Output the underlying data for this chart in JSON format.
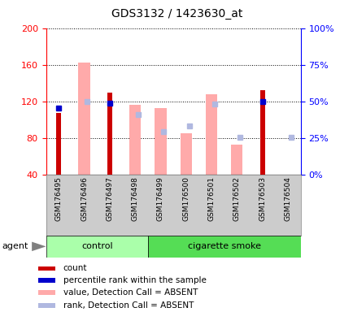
{
  "title": "GDS3132 / 1423630_at",
  "samples": [
    "GSM176495",
    "GSM176496",
    "GSM176497",
    "GSM176498",
    "GSM176499",
    "GSM176500",
    "GSM176501",
    "GSM176502",
    "GSM176503",
    "GSM176504"
  ],
  "count_values": [
    107,
    null,
    130,
    null,
    null,
    null,
    null,
    null,
    132,
    null
  ],
  "percentile_rank_vals": [
    113,
    null,
    118,
    null,
    null,
    null,
    null,
    null,
    120,
    null
  ],
  "absent_value": [
    null,
    162,
    null,
    116,
    113,
    85,
    128,
    73,
    null,
    40
  ],
  "absent_rank": [
    null,
    120,
    null,
    106,
    87,
    93,
    117,
    81,
    null,
    81
  ],
  "ylim_left": [
    40,
    200
  ],
  "ylim_right": [
    0,
    100
  ],
  "yticks_left": [
    40,
    80,
    120,
    160,
    200
  ],
  "yticks_right": [
    0,
    25,
    50,
    75,
    100
  ],
  "bar_color_count": "#cc0000",
  "bar_color_rank": "#0000cc",
  "bar_color_absent_value": "#ffaaaa",
  "bar_color_absent_rank": "#b0b8e0",
  "control_color": "#aaffaa",
  "smoke_color": "#55dd55",
  "group_label_control": "control",
  "group_label_smoke": "cigarette smoke",
  "agent_label": "agent",
  "legend_items": [
    "count",
    "percentile rank within the sample",
    "value, Detection Call = ABSENT",
    "rank, Detection Call = ABSENT"
  ],
  "legend_colors": [
    "#cc0000",
    "#0000cc",
    "#ffaaaa",
    "#b0b8e0"
  ]
}
